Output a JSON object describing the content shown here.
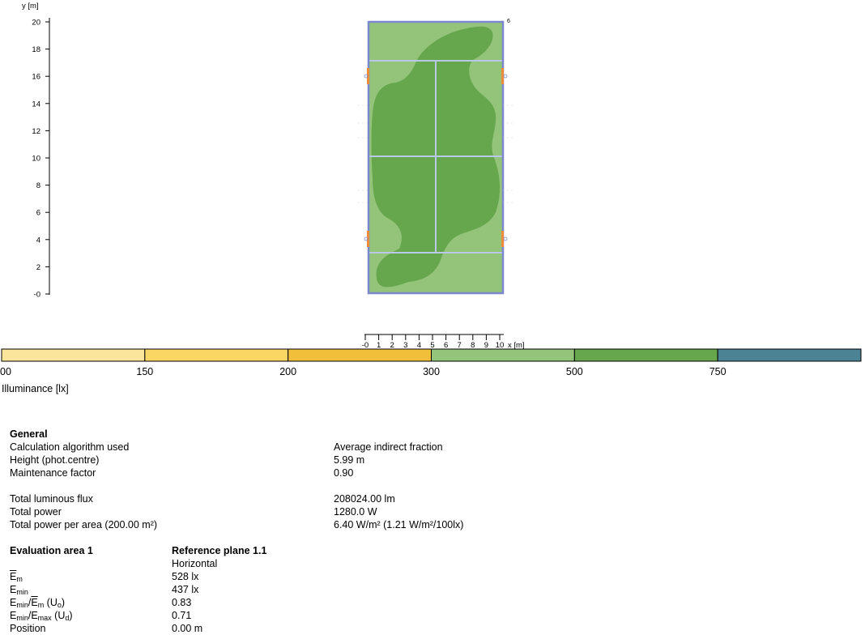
{
  "plot": {
    "y_axis_label": "y [m]",
    "x_axis_label": "x [m]",
    "y_ticks": [
      "20",
      "18",
      "16",
      "14",
      "12",
      "10",
      "8",
      "6",
      "4",
      "2",
      "-0"
    ],
    "x_ticks": [
      "-0",
      "1",
      "2",
      "3",
      "4",
      "5",
      "6",
      "7",
      "8",
      "9",
      "10"
    ],
    "corner_marker": "6",
    "colors": {
      "outline": "#7b88d0",
      "court_lines": "#b9c8e8",
      "fixture": "#ef8a3a",
      "zone_300_500": "#93c47a",
      "zone_500_750": "#66a64c"
    }
  },
  "legend": {
    "title": "Illuminance [lx]",
    "labels": [
      "00",
      "150",
      "200",
      "300",
      "500",
      "750"
    ],
    "colors": [
      "#fbe59a",
      "#fad665",
      "#f1bf3a",
      "#93c47a",
      "#66a64c",
      "#4b8394"
    ]
  },
  "general": {
    "heading": "General",
    "rows": [
      {
        "label": "Calculation algorithm used",
        "value": "Average indirect fraction"
      },
      {
        "label": "Height (phot.centre)",
        "value": "5.99 m"
      },
      {
        "label": "Maintenance factor",
        "value": "0.90"
      }
    ],
    "rows2": [
      {
        "label": "Total luminous flux",
        "value": "208024.00 lm"
      },
      {
        "label": "Total power",
        "value": "1280.0 W"
      },
      {
        "label": "Total power per area (200.00 m²)",
        "value": "6.40 W/m² (1.21 W/m²/100lx)"
      }
    ]
  },
  "evaluation": {
    "heading": "Evaluation area 1",
    "plane_heading": "Reference plane 1.1",
    "plane_orientation": "Horizontal",
    "rows": [
      {
        "label": "Em",
        "value": "528 lx"
      },
      {
        "label": "Emin",
        "value": "437 lx"
      },
      {
        "label": "Emin/Em (Uo)",
        "value": "0.83"
      },
      {
        "label": "Emin/Emax (Ud)",
        "value": "0.71"
      },
      {
        "label": "Position",
        "value": "0.00 m"
      }
    ]
  }
}
